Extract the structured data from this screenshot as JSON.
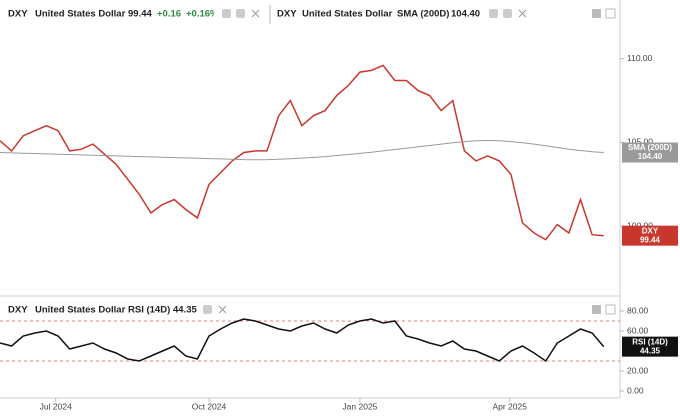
{
  "chart_data": [
    {
      "type": "line",
      "header": {
        "symbol": "DXY",
        "name": "United States Dollar",
        "last": "99.44",
        "change": "+0.16",
        "change_pct": "+0.16%",
        "study": "SMA (200D)",
        "study_last": "104.40"
      },
      "x": [
        0,
        1,
        2,
        3,
        4,
        5,
        6,
        7,
        8,
        9,
        10,
        11,
        12,
        13,
        14,
        15,
        16,
        17,
        18,
        19,
        20,
        21,
        22,
        23,
        24,
        25,
        26,
        27,
        28,
        29,
        30,
        31,
        32,
        33,
        34,
        35,
        36,
        37,
        38,
        39,
        40,
        41,
        42,
        43,
        44,
        45,
        46,
        47,
        48,
        49,
        50,
        51,
        52
      ],
      "xlim": [
        0,
        53.4
      ],
      "ylim": [
        95.9,
        113.5
      ],
      "yticks": [
        {
          "value": 110,
          "label": "110.00"
        },
        {
          "value": 105,
          "label": "105.00"
        },
        {
          "value": 100,
          "label": "100.00"
        }
      ],
      "series": [
        {
          "name": "DXY",
          "color": "#c8372d",
          "values": [
            105.1,
            104.5,
            105.4,
            105.7,
            106.0,
            105.7,
            104.5,
            104.6,
            104.9,
            104.3,
            103.7,
            102.8,
            101.9,
            100.8,
            101.3,
            101.6,
            101.0,
            100.5,
            102.5,
            103.2,
            103.9,
            104.4,
            104.5,
            104.5,
            106.6,
            107.5,
            106.0,
            106.6,
            106.9,
            107.8,
            108.4,
            109.2,
            109.3,
            109.6,
            108.7,
            108.7,
            108.1,
            107.8,
            106.9,
            107.5,
            104.5,
            103.9,
            104.2,
            103.9,
            103.1,
            100.2,
            99.6,
            99.2,
            100.1,
            99.6,
            101.6,
            99.5,
            99.44
          ]
        },
        {
          "name": "SMA (200D)",
          "color": "#9a9a9a",
          "values": [
            104.4,
            104.38,
            104.36,
            104.34,
            104.32,
            104.3,
            104.28,
            104.26,
            104.24,
            104.22,
            104.2,
            104.18,
            104.16,
            104.14,
            104.12,
            104.1,
            104.08,
            104.06,
            104.04,
            104.02,
            104.0,
            103.98,
            103.97,
            103.98,
            104.0,
            104.03,
            104.07,
            104.11,
            104.16,
            104.22,
            104.28,
            104.35,
            104.42,
            104.5,
            104.58,
            104.66,
            104.74,
            104.82,
            104.9,
            104.98,
            105.05,
            105.1,
            105.12,
            105.1,
            105.05,
            104.98,
            104.9,
            104.8,
            104.7,
            104.6,
            104.52,
            104.45,
            104.4
          ]
        }
      ]
    },
    {
      "type": "line",
      "header": {
        "symbol": "DXY",
        "name": "United States Dollar",
        "study": "RSI (14D)",
        "study_last": "44.35"
      },
      "x": [
        0,
        1,
        2,
        3,
        4,
        5,
        6,
        7,
        8,
        9,
        10,
        11,
        12,
        13,
        14,
        15,
        16,
        17,
        18,
        19,
        20,
        21,
        22,
        23,
        24,
        25,
        26,
        27,
        28,
        29,
        30,
        31,
        32,
        33,
        34,
        35,
        36,
        37,
        38,
        39,
        40,
        41,
        42,
        43,
        44,
        45,
        46,
        47,
        48,
        49,
        50,
        51,
        52
      ],
      "xlim": [
        0,
        53.4
      ],
      "xticks": [
        {
          "value": 4.8,
          "label": "Jul 2024"
        },
        {
          "value": 18,
          "label": "Oct 2024"
        },
        {
          "value": 31,
          "label": "Jan 2025"
        },
        {
          "value": 43.9,
          "label": "Apr 2025"
        }
      ],
      "ylim": [
        -7,
        94
      ],
      "yticks": [
        {
          "value": 80,
          "label": "80.00"
        },
        {
          "value": 60,
          "label": "60.00"
        },
        {
          "value": 20,
          "label": "20.00"
        },
        {
          "value": 0,
          "label": "0.00"
        }
      ],
      "reference_lines": [
        70,
        30
      ],
      "series": [
        {
          "name": "RSI (14D)",
          "color": "#111111",
          "values": [
            48,
            45,
            55,
            58,
            60,
            55,
            42,
            45,
            48,
            42,
            38,
            32,
            30,
            35,
            40,
            45,
            35,
            32,
            55,
            62,
            68,
            72,
            70,
            66,
            62,
            60,
            65,
            68,
            62,
            58,
            66,
            70,
            72,
            68,
            70,
            55,
            52,
            48,
            45,
            50,
            42,
            40,
            35,
            30,
            40,
            45,
            38,
            30,
            48,
            55,
            62,
            58,
            44.35
          ]
        }
      ]
    }
  ]
}
